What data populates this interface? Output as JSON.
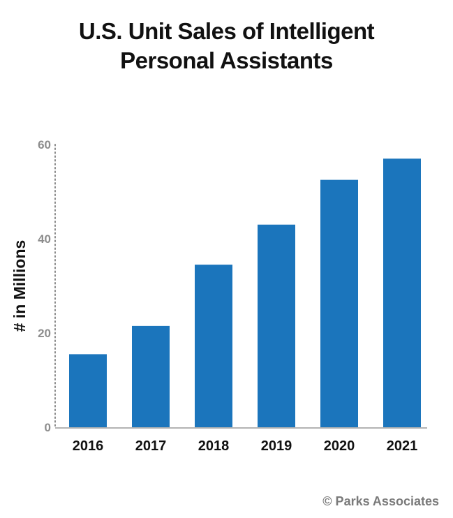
{
  "chart_data": {
    "type": "bar",
    "title": [
      "U.S. Unit Sales of Intelligent",
      "Personal Assistants"
    ],
    "ylabel": "# in Millions",
    "xlabel": "",
    "categories": [
      "2016",
      "2017",
      "2018",
      "2019",
      "2020",
      "2021"
    ],
    "values": [
      15.5,
      21.5,
      34.5,
      43,
      52.5,
      57
    ],
    "ylim": [
      0,
      60
    ],
    "yticks": [
      0,
      20,
      40,
      60
    ],
    "bar_color": "#1b75bc",
    "grid": false,
    "legend": "none"
  },
  "footer": {
    "copyright": "© Parks Associates"
  }
}
